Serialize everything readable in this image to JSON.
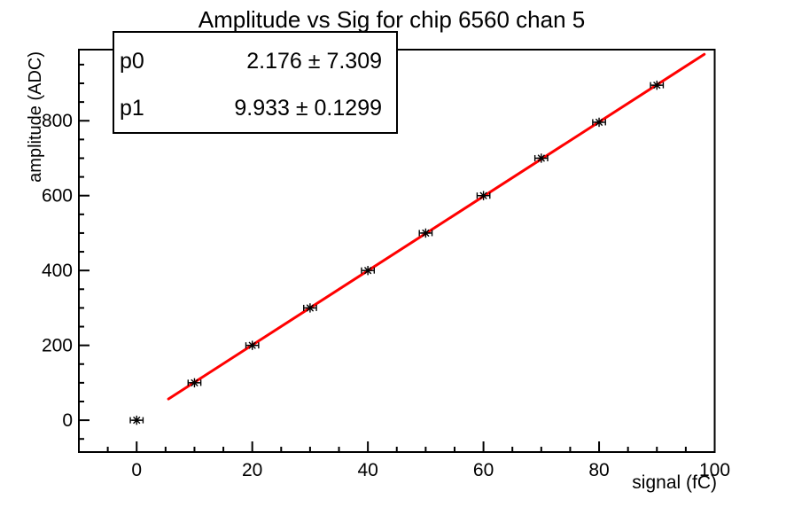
{
  "window": {
    "background": "#ffffff"
  },
  "stats_box": {
    "rows": [
      {
        "name": "p0",
        "value": "2.176 ± 7.309"
      },
      {
        "name": "p1",
        "value": "9.933 ± 0.1299"
      }
    ]
  },
  "chart_data": {
    "type": "scatter",
    "title": "Amplitude vs Sig for chip 6560 chan 5",
    "xlabel": "signal (fC)",
    "ylabel": "amplitude (ADC)",
    "xlim": [
      -10,
      100
    ],
    "ylim": [
      -85,
      990
    ],
    "x_ticks": [
      0,
      20,
      40,
      60,
      80,
      100
    ],
    "x_minor_step": 5,
    "y_ticks": [
      0,
      200,
      400,
      600,
      800
    ],
    "y_minor_step": 50,
    "grid": false,
    "legend": null,
    "marker": "asterisk",
    "points": [
      {
        "x": 0,
        "y": 0
      },
      {
        "x": 10,
        "y": 100
      },
      {
        "x": 20,
        "y": 200
      },
      {
        "x": 30,
        "y": 300
      },
      {
        "x": 40,
        "y": 400
      },
      {
        "x": 50,
        "y": 500
      },
      {
        "x": 60,
        "y": 600
      },
      {
        "x": 70,
        "y": 700
      },
      {
        "x": 80,
        "y": 796
      },
      {
        "x": 90,
        "y": 895
      }
    ],
    "xerr": 1.1,
    "fit": {
      "type": "linear",
      "p0": 2.176,
      "p1": 9.933,
      "p0_err": 7.309,
      "p1_err": 0.1299,
      "draw_range": [
        5.5,
        98.2
      ],
      "color": "#ff0000"
    },
    "colors": {
      "axis": "#000000",
      "marker": "#000000",
      "fit_line": "#ff0000",
      "background": "#ffffff"
    }
  }
}
